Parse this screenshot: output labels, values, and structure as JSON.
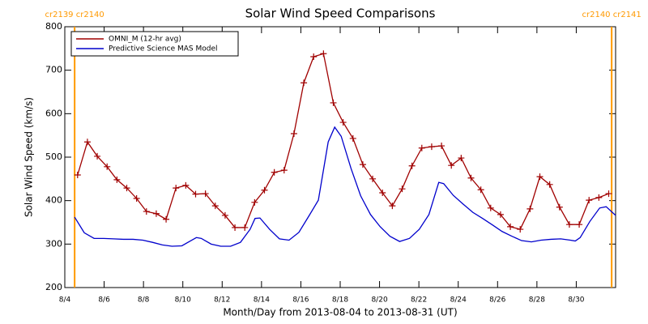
{
  "chart_data": {
    "type": "line",
    "title": "Solar Wind Speed Comparisons",
    "xlabel": "Month/Day from 2013-08-04 to 2013-08-31 (UT)",
    "ylabel": "Solar Wind Speed (km/s)",
    "xlim": [
      4,
      32
    ],
    "xticks": [
      {
        "value": 4,
        "label": "8/4"
      },
      {
        "value": 6,
        "label": "8/6"
      },
      {
        "value": 8,
        "label": "8/8"
      },
      {
        "value": 10,
        "label": "8/10"
      },
      {
        "value": 12,
        "label": "8/12"
      },
      {
        "value": 14,
        "label": "8/14"
      },
      {
        "value": 16,
        "label": "8/16"
      },
      {
        "value": 18,
        "label": "8/18"
      },
      {
        "value": 20,
        "label": "8/20"
      },
      {
        "value": 22,
        "label": "8/22"
      },
      {
        "value": 24,
        "label": "8/24"
      },
      {
        "value": 26,
        "label": "8/26"
      },
      {
        "value": 28,
        "label": "8/28"
      },
      {
        "value": 30,
        "label": "8/30"
      }
    ],
    "ylim": [
      200,
      800
    ],
    "yticks": [
      200,
      300,
      400,
      500,
      600,
      700,
      800
    ],
    "legend": "top-left",
    "annotations": [
      {
        "text": "cr2139 cr2140",
        "x": 4.5,
        "color": "#ff9900"
      },
      {
        "text": "cr2140 cr2141",
        "x": 31.8,
        "color": "#ff9900"
      }
    ],
    "series": [
      {
        "name": "OMNI_M (12-hr avg)",
        "color": "#a00000",
        "marker": "plus",
        "x": [
          4.65,
          5.15,
          5.65,
          6.15,
          6.65,
          7.15,
          7.65,
          8.15,
          8.65,
          9.15,
          9.65,
          10.15,
          10.65,
          11.15,
          11.65,
          12.15,
          12.65,
          13.15,
          13.65,
          14.15,
          14.65,
          15.15,
          15.65,
          16.15,
          16.65,
          17.15,
          17.65,
          18.15,
          18.65,
          19.15,
          19.65,
          20.15,
          20.65,
          21.15,
          21.65,
          22.15,
          22.65,
          23.15,
          23.65,
          24.15,
          24.65,
          25.15,
          25.65,
          26.15,
          26.65,
          27.15,
          27.65,
          28.15,
          28.65,
          29.15,
          29.65,
          30.15,
          30.65,
          31.15,
          31.65
        ],
        "values": [
          459,
          535,
          502,
          478,
          448,
          429,
          405,
          375,
          370,
          357,
          429,
          435,
          415,
          416,
          388,
          366,
          338,
          338,
          396,
          424,
          465,
          470,
          554,
          671,
          731,
          738,
          625,
          580,
          543,
          483,
          450,
          418,
          388,
          427,
          480,
          521,
          524,
          526,
          481,
          498,
          452,
          425,
          383,
          368,
          340,
          334,
          381,
          455,
          437,
          385,
          345,
          345,
          401,
          407,
          416
        ]
      },
      {
        "name": "Predictive Science MAS Model",
        "color": "#0000cc",
        "x": [
          4.5,
          4.99,
          5.49,
          5.98,
          6.48,
          6.98,
          7.47,
          7.97,
          8.46,
          8.96,
          9.45,
          9.95,
          10.45,
          10.69,
          10.94,
          11.44,
          11.93,
          12.43,
          12.93,
          13.42,
          13.67,
          13.92,
          14.41,
          14.91,
          15.4,
          15.9,
          16.4,
          16.89,
          17.39,
          17.72,
          18.05,
          18.55,
          19.04,
          19.54,
          20.03,
          20.53,
          21.02,
          21.52,
          22.02,
          22.51,
          23.01,
          23.26,
          23.75,
          24.25,
          24.74,
          25.24,
          25.74,
          26.23,
          26.73,
          27.22,
          27.72,
          28.21,
          28.71,
          29.21,
          29.7,
          29.95,
          30.2,
          30.69,
          31.19,
          31.52,
          32.0
        ],
        "values": [
          362,
          326,
          313,
          313,
          312,
          311,
          311,
          309,
          304,
          298,
          295,
          296,
          309,
          315,
          313,
          300,
          295,
          295,
          304,
          334,
          359,
          360,
          334,
          312,
          309,
          327,
          364,
          401,
          535,
          569,
          548,
          474,
          411,
          368,
          340,
          318,
          306,
          313,
          334,
          368,
          442,
          439,
          412,
          392,
          373,
          359,
          344,
          329,
          318,
          308,
          305,
          309,
          311,
          312,
          309,
          307,
          315,
          352,
          383,
          386,
          366
        ]
      }
    ]
  }
}
